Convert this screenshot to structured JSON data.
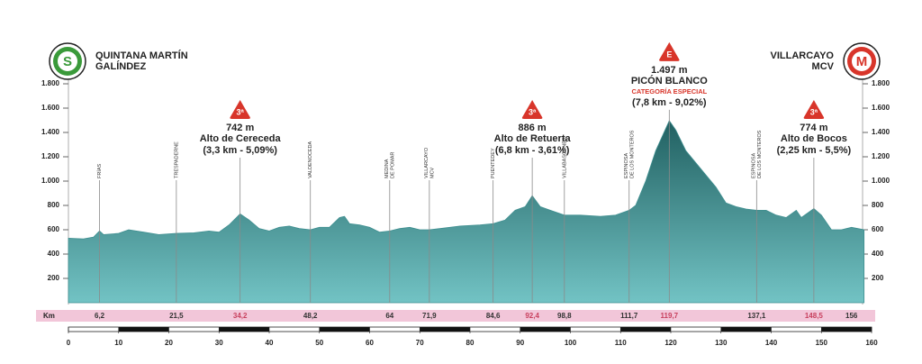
{
  "chart_data": {
    "type": "area",
    "start": {
      "badge": "S",
      "lines": [
        "QUINTANA MARTÍN",
        "GALÍNDEZ"
      ],
      "color": "#3a9a3a"
    },
    "finish": {
      "badge": "M",
      "lines": [
        "VILLARCAYO",
        "MCV"
      ],
      "color": "#d8352a"
    },
    "x": [
      0,
      3,
      5,
      6.2,
      7,
      10,
      12,
      15,
      18,
      21.5,
      25,
      28,
      30,
      32,
      34.2,
      36,
      38,
      40,
      42,
      44,
      46,
      48.2,
      50,
      52,
      54,
      55,
      56,
      58,
      60,
      62,
      64,
      66,
      68,
      70,
      71.9,
      74,
      78,
      82,
      84.6,
      87,
      89,
      91,
      92.4,
      94,
      96,
      98.8,
      102,
      106,
      109,
      111.7,
      113,
      115,
      117,
      119.7,
      121,
      123,
      125,
      127,
      129,
      131,
      133,
      135,
      137.1,
      139,
      141,
      143,
      145,
      146,
      148.5,
      150,
      152,
      154,
      156,
      158.5
    ],
    "values": [
      530,
      525,
      540,
      590,
      560,
      570,
      600,
      580,
      560,
      570,
      575,
      590,
      580,
      640,
      730,
      680,
      610,
      590,
      620,
      630,
      610,
      600,
      620,
      620,
      700,
      710,
      650,
      640,
      620,
      580,
      590,
      610,
      620,
      600,
      600,
      610,
      630,
      640,
      650,
      680,
      760,
      790,
      880,
      790,
      760,
      720,
      720,
      710,
      720,
      760,
      800,
      1000,
      1250,
      1497,
      1420,
      1250,
      1150,
      1050,
      950,
      820,
      790,
      770,
      760,
      760,
      720,
      700,
      760,
      700,
      774,
      720,
      600,
      600,
      620,
      600
    ],
    "color": "#3f8f90",
    "xlim": [
      0,
      160
    ],
    "xticks": [
      0,
      10,
      20,
      30,
      40,
      50,
      60,
      70,
      80,
      90,
      100,
      110,
      120,
      130,
      140,
      150,
      160
    ],
    "ylim": [
      0,
      1800
    ],
    "yticks": [
      200,
      400,
      600,
      800,
      {
        "value": 1000,
        "label": "1.000"
      },
      {
        "value": 1200,
        "label": "1.200"
      },
      {
        "value": 1400,
        "label": "1.400"
      },
      {
        "value": 1600,
        "label": "1.600"
      },
      {
        "value": 1800,
        "label": "1.800"
      }
    ],
    "km_label": "Km",
    "km_band_color": "#f2c6d9",
    "km_markers": [
      {
        "value": 6.2,
        "label": "6,2",
        "color": "#333"
      },
      {
        "value": 21.5,
        "label": "21,5",
        "color": "#333"
      },
      {
        "value": 34.2,
        "label": "34,2",
        "color": "#c8405e"
      },
      {
        "value": 48.2,
        "label": "48,2",
        "color": "#333"
      },
      {
        "value": 64,
        "color": "#333"
      },
      {
        "value": 71.9,
        "label": "71,9",
        "color": "#333"
      },
      {
        "value": 84.6,
        "label": "84,6",
        "color": "#333"
      },
      {
        "value": 92.4,
        "label": "92,4",
        "color": "#c8405e"
      },
      {
        "value": 98.8,
        "label": "98,8",
        "color": "#333"
      },
      {
        "value": 111.7,
        "label": "111,7",
        "color": "#333"
      },
      {
        "value": 119.7,
        "label": "119,7",
        "color": "#c8405e"
      },
      {
        "value": 137.1,
        "label": "137,1",
        "color": "#333"
      },
      {
        "value": 148.5,
        "label": "148,5",
        "color": "#c8405e"
      },
      {
        "value": 156,
        "color": "#333"
      }
    ],
    "towns": [
      {
        "km": 6.2,
        "lines": [
          "FRÍAS"
        ]
      },
      {
        "km": 21.5,
        "lines": [
          "TRESPADERNE"
        ]
      },
      {
        "km": 48.2,
        "lines": [
          "VALDENOCEDA"
        ]
      },
      {
        "km": 64,
        "lines": [
          "MEDINA",
          "DE POMAR"
        ]
      },
      {
        "km": 71.9,
        "lines": [
          "VILLARCAYO",
          "MCV"
        ]
      },
      {
        "km": 84.6,
        "lines": [
          "PUENTEDEY"
        ]
      },
      {
        "km": 98.8,
        "lines": [
          "VILLABASCONES"
        ]
      },
      {
        "km": 111.7,
        "lines": [
          "ESPINOSA",
          "DE LOS MONTEROS"
        ]
      },
      {
        "km": 137.1,
        "lines": [
          "ESPINOSA",
          "DE LOS MONTEROS"
        ]
      }
    ],
    "climbs": [
      {
        "km": 34.2,
        "category": "3ª",
        "elevation": {
          "value": 742,
          "label": "742 m"
        },
        "name": "Alto de Cereceda",
        "detail": "(3,3 km - 5,09%)"
      },
      {
        "km": 92.4,
        "category": "3ª",
        "elevation": {
          "value": 886,
          "label": "886 m"
        },
        "name": "Alto de Retuerta",
        "detail": "(6,8 km - 3,61%)"
      },
      {
        "km": 119.7,
        "category": "E",
        "elevation": {
          "value": 1497,
          "label": "1.497 m"
        },
        "name": "PICÓN BLANCO",
        "special": "CATEGORÍA ESPECIAL",
        "detail": "(7,8 km - 9,02%)"
      },
      {
        "km": 148.5,
        "category": "3ª",
        "elevation": {
          "value": 774,
          "label": "774 m"
        },
        "name": "Alto de Bocos",
        "detail": "(2,25 km - 5,5%)"
      }
    ]
  }
}
